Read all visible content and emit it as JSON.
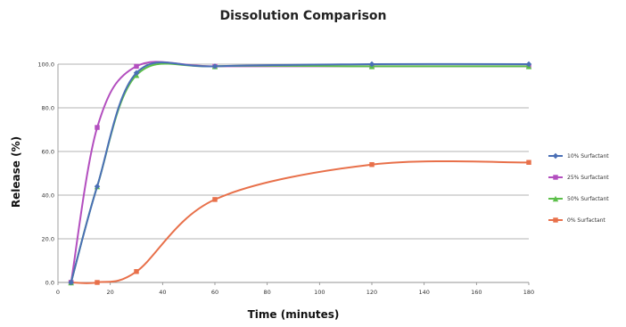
{
  "chart_data": {
    "type": "line",
    "title": "Dissolution Comparison",
    "xlabel": "Time (minutes)",
    "ylabel": "Release (%)",
    "xlim": [
      0,
      180
    ],
    "ylim": [
      0,
      100
    ],
    "x_ticks": [
      0,
      20,
      40,
      60,
      80,
      100,
      120,
      140,
      160,
      180
    ],
    "y_ticks": [
      0,
      20,
      40,
      60,
      80,
      100
    ],
    "y_tick_labels": [
      "0.0",
      "20.0",
      "40.0",
      "60.0",
      "80.0",
      "100.0"
    ],
    "grid": "horizontal",
    "legend_position": "right",
    "series": [
      {
        "name": "10% Surfactant",
        "color": "#4a6fb5",
        "marker": "diamond",
        "x": [
          5,
          15,
          30,
          60,
          120,
          180
        ],
        "y": [
          0,
          44,
          96,
          99,
          100,
          100
        ]
      },
      {
        "name": "25% Surfactant",
        "color": "#b34fbf",
        "marker": "square",
        "x": [
          5,
          15,
          30,
          60,
          120,
          180
        ],
        "y": [
          0,
          71,
          99,
          99,
          99,
          99
        ]
      },
      {
        "name": "50% Surfactant",
        "color": "#5cbf4a",
        "marker": "triangle",
        "x": [
          5,
          15,
          30,
          60,
          120,
          180
        ],
        "y": [
          0,
          44,
          95,
          99,
          99,
          99
        ]
      },
      {
        "name": "0% Surfactant",
        "color": "#e8704a",
        "marker": "square",
        "x": [
          5,
          15,
          30,
          60,
          120,
          180
        ],
        "y": [
          0,
          0,
          5,
          38,
          54,
          55
        ]
      }
    ]
  }
}
